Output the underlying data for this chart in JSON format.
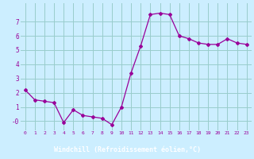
{
  "x": [
    0,
    1,
    2,
    3,
    4,
    5,
    6,
    7,
    8,
    9,
    10,
    11,
    12,
    13,
    14,
    15,
    16,
    17,
    18,
    19,
    20,
    21,
    22,
    23
  ],
  "y": [
    2.2,
    1.5,
    1.4,
    1.3,
    -0.1,
    0.8,
    0.4,
    0.3,
    0.2,
    -0.25,
    1.0,
    3.4,
    5.3,
    7.5,
    7.6,
    7.5,
    6.0,
    5.8,
    5.5,
    5.4,
    5.4,
    5.8,
    5.5,
    5.4
  ],
  "line_color": "#990099",
  "marker": "D",
  "marker_size": 2.0,
  "bg_color": "#cceeff",
  "grid_color": "#99cccc",
  "xlabel": "Windchill (Refroidissement éolien,°C)",
  "xlabel_color": "#ffffff",
  "xlabel_bg": "#880099",
  "yticks": [
    0,
    1,
    2,
    3,
    4,
    5,
    6,
    7
  ],
  "ytick_labels": [
    "-0",
    "1",
    "2",
    "3",
    "4",
    "5",
    "6",
    "7"
  ],
  "xlim": [
    -0.5,
    23.5
  ],
  "ylim": [
    -0.65,
    8.3
  ]
}
